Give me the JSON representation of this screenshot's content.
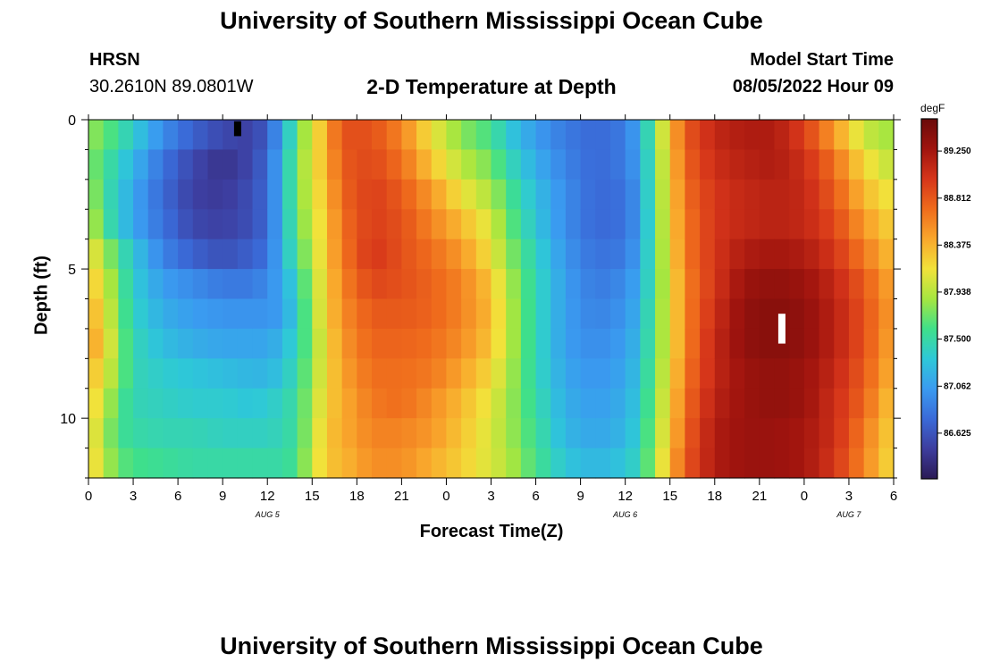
{
  "header": {
    "title": "University of Southern Mississippi Ocean Cube",
    "station": "HRSN",
    "coordinates": "30.2610N  89.0801W",
    "subtitle": "2-D Temperature at Depth",
    "model_start_label": "Model Start Time",
    "model_start_value": "08/05/2022 Hour 09"
  },
  "footer": {
    "title": "University of Southern Mississippi Ocean Cube"
  },
  "chart_data": {
    "type": "heatmap",
    "title": "2-D Temperature at Depth",
    "xlabel": "Forecast Time(Z)",
    "ylabel": "Depth (ft)",
    "x_tick_labels": [
      "0",
      "3",
      "6",
      "9",
      "12",
      "15",
      "18",
      "21",
      "0",
      "3",
      "6",
      "9",
      "12",
      "15",
      "18",
      "21",
      "0",
      "3",
      "6"
    ],
    "x_range_hours": [
      0,
      54
    ],
    "date_labels": [
      {
        "text": "AUG 5",
        "hour": 12
      },
      {
        "text": "AUG 6",
        "hour": 36
      },
      {
        "text": "AUG 7",
        "hour": 51
      }
    ],
    "y_ticks": [
      0,
      5,
      10
    ],
    "y_range_ft": [
      0,
      12
    ],
    "colorbar": {
      "unit": "degF",
      "min": 86.2,
      "max": 89.55,
      "tick_labels": [
        "89.250",
        "88.812",
        "88.375",
        "87.938",
        "87.500",
        "87.062",
        "86.625"
      ],
      "colors": [
        "#2b1a55",
        "#3d3d9e",
        "#3a6ad8",
        "#3a9bf0",
        "#2ec8d8",
        "#3fe08a",
        "#a6e640",
        "#f2e23a",
        "#f9a72c",
        "#ef6b1c",
        "#d6351a",
        "#a0140e",
        "#6a0a0a"
      ]
    },
    "depth_profiles": [
      {
        "hour": 0,
        "values": [
          87.85,
          87.8,
          87.95,
          88.05,
          88.2,
          88.35,
          88.45,
          88.5,
          88.4,
          88.3,
          88.25,
          88.3
        ]
      },
      {
        "hour": 1,
        "values": [
          87.7,
          87.6,
          87.55,
          87.6,
          87.9,
          88.05,
          88.15,
          88.25,
          88.1,
          88.0,
          87.9,
          87.95
        ]
      },
      {
        "hour": 2,
        "values": [
          87.55,
          87.4,
          87.35,
          87.35,
          87.6,
          87.7,
          87.75,
          87.8,
          87.8,
          87.65,
          87.6,
          87.7
        ]
      },
      {
        "hour": 3,
        "values": [
          87.35,
          87.2,
          87.1,
          87.1,
          87.3,
          87.35,
          87.4,
          87.45,
          87.45,
          87.45,
          87.5,
          87.6
        ]
      },
      {
        "hour": 5,
        "values": [
          86.95,
          86.8,
          86.75,
          86.8,
          86.9,
          87.05,
          87.15,
          87.25,
          87.35,
          87.4,
          87.45,
          87.55
        ]
      },
      {
        "hour": 7,
        "values": [
          86.7,
          86.55,
          86.5,
          86.55,
          86.7,
          86.95,
          87.05,
          87.15,
          87.3,
          87.35,
          87.45,
          87.5
        ]
      },
      {
        "hour": 9,
        "values": [
          86.55,
          86.4,
          86.45,
          86.5,
          86.6,
          86.85,
          87.0,
          87.1,
          87.25,
          87.35,
          87.4,
          87.5
        ]
      },
      {
        "hour": 11,
        "values": [
          86.5,
          86.55,
          86.6,
          86.6,
          86.7,
          86.85,
          87.0,
          87.1,
          87.2,
          87.3,
          87.4,
          87.5
        ]
      },
      {
        "hour": 12,
        "values": [
          86.7,
          86.75,
          86.75,
          86.75,
          86.8,
          86.95,
          87.0,
          87.1,
          87.2,
          87.35,
          87.4,
          87.5
        ]
      },
      {
        "hour": 13,
        "values": [
          87.1,
          87.2,
          87.2,
          87.2,
          87.2,
          87.1,
          87.05,
          87.2,
          87.3,
          87.4,
          87.45,
          87.5
        ]
      },
      {
        "hour": 14,
        "values": [
          87.7,
          87.75,
          87.75,
          87.7,
          87.6,
          87.45,
          87.4,
          87.45,
          87.5,
          87.55,
          87.55,
          87.6
        ]
      },
      {
        "hour": 15,
        "values": [
          88.05,
          88.1,
          88.05,
          88.0,
          87.95,
          87.9,
          87.85,
          87.8,
          87.85,
          87.9,
          87.95,
          88.0
        ]
      },
      {
        "hour": 16,
        "values": [
          88.45,
          88.4,
          88.35,
          88.3,
          88.3,
          88.25,
          88.25,
          88.2,
          88.2,
          88.25,
          88.3,
          88.3
        ]
      },
      {
        "hour": 17,
        "values": [
          88.85,
          88.8,
          88.75,
          88.7,
          88.65,
          88.6,
          88.55,
          88.5,
          88.45,
          88.4,
          88.4,
          88.35
        ]
      },
      {
        "hour": 19,
        "values": [
          88.85,
          88.9,
          88.95,
          88.95,
          89.0,
          88.9,
          88.8,
          88.75,
          88.7,
          88.65,
          88.6,
          88.55
        ]
      },
      {
        "hour": 21,
        "values": [
          88.6,
          88.7,
          88.8,
          88.85,
          88.85,
          88.85,
          88.8,
          88.75,
          88.7,
          88.7,
          88.6,
          88.55
        ]
      },
      {
        "hour": 23,
        "values": [
          88.15,
          88.3,
          88.5,
          88.6,
          88.7,
          88.75,
          88.75,
          88.7,
          88.65,
          88.55,
          88.5,
          88.4
        ]
      },
      {
        "hour": 25,
        "values": [
          87.8,
          87.95,
          88.15,
          88.35,
          88.5,
          88.6,
          88.6,
          88.55,
          88.45,
          88.35,
          88.3,
          88.25
        ]
      },
      {
        "hour": 27,
        "values": [
          87.6,
          87.75,
          87.9,
          88.05,
          88.15,
          88.3,
          88.35,
          88.3,
          88.2,
          88.1,
          88.05,
          88.05
        ]
      },
      {
        "hour": 28,
        "values": [
          87.35,
          87.5,
          87.65,
          87.75,
          87.85,
          87.95,
          88.0,
          88.0,
          87.95,
          87.9,
          87.9,
          87.95
        ]
      },
      {
        "hour": 30,
        "values": [
          87.05,
          87.15,
          87.25,
          87.3,
          87.4,
          87.45,
          87.45,
          87.45,
          87.45,
          87.5,
          87.55,
          87.6
        ]
      },
      {
        "hour": 32,
        "values": [
          86.85,
          86.9,
          86.95,
          86.95,
          87.0,
          87.05,
          87.05,
          87.05,
          87.1,
          87.15,
          87.2,
          87.3
        ]
      },
      {
        "hour": 34,
        "values": [
          86.75,
          86.75,
          86.75,
          86.75,
          86.8,
          86.85,
          86.9,
          86.95,
          87.0,
          87.05,
          87.1,
          87.2
        ]
      },
      {
        "hour": 36,
        "values": [
          86.85,
          86.85,
          86.8,
          86.8,
          86.85,
          86.95,
          87.0,
          87.05,
          87.1,
          87.15,
          87.2,
          87.3
        ]
      },
      {
        "hour": 37,
        "values": [
          87.15,
          87.1,
          87.05,
          87.05,
          87.1,
          87.15,
          87.2,
          87.25,
          87.3,
          87.35,
          87.4,
          87.45
        ]
      },
      {
        "hour": 38,
        "values": [
          87.75,
          87.7,
          87.7,
          87.65,
          87.65,
          87.65,
          87.7,
          87.7,
          87.75,
          87.8,
          87.85,
          87.9
        ]
      },
      {
        "hour": 39,
        "values": [
          88.3,
          88.25,
          88.2,
          88.2,
          88.15,
          88.1,
          88.1,
          88.1,
          88.15,
          88.2,
          88.25,
          88.35
        ]
      },
      {
        "hour": 40,
        "values": [
          88.8,
          88.75,
          88.7,
          88.65,
          88.65,
          88.6,
          88.6,
          88.6,
          88.65,
          88.7,
          88.75,
          88.8
        ]
      },
      {
        "hour": 42,
        "values": [
          89.1,
          89.05,
          89.0,
          89.0,
          89.0,
          89.0,
          89.05,
          89.1,
          89.1,
          89.15,
          89.2,
          89.2
        ]
      },
      {
        "hour": 44,
        "values": [
          89.2,
          89.15,
          89.1,
          89.1,
          89.2,
          89.3,
          89.35,
          89.35,
          89.3,
          89.3,
          89.3,
          89.3
        ]
      },
      {
        "hour": 46,
        "values": [
          89.2,
          89.2,
          89.15,
          89.15,
          89.25,
          89.35,
          89.4,
          89.4,
          89.35,
          89.35,
          89.3,
          89.3
        ]
      },
      {
        "hour": 48,
        "values": [
          88.95,
          89.05,
          89.1,
          89.1,
          89.2,
          89.3,
          89.35,
          89.35,
          89.3,
          89.3,
          89.25,
          89.25
        ]
      },
      {
        "hour": 50,
        "values": [
          88.5,
          88.7,
          88.8,
          88.9,
          89.0,
          89.1,
          89.15,
          89.15,
          89.1,
          89.05,
          89.05,
          89.0
        ]
      },
      {
        "hour": 52,
        "values": [
          88.0,
          88.2,
          88.35,
          88.5,
          88.65,
          88.8,
          88.85,
          88.85,
          88.8,
          88.75,
          88.65,
          88.6
        ]
      },
      {
        "hour": 54,
        "values": [
          87.85,
          87.95,
          88.1,
          88.2,
          88.3,
          88.4,
          88.45,
          88.4,
          88.35,
          88.25,
          88.2,
          88.15
        ]
      }
    ],
    "markers": [
      {
        "name": "min-marker",
        "hour": 10,
        "depth_from": 0.05,
        "depth_to": 0.55,
        "color": "#000000"
      },
      {
        "name": "max-marker",
        "hour": 46.5,
        "depth_from": 6.5,
        "depth_to": 7.5,
        "color": "#ffffff"
      }
    ]
  }
}
